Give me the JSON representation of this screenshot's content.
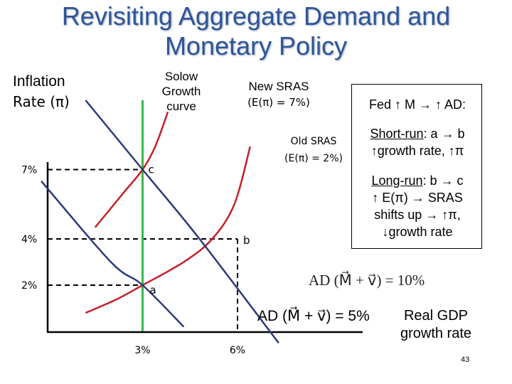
{
  "title": {
    "line1": "Revisiting Aggregate Demand and",
    "line2": "Monetary Policy"
  },
  "axis": {
    "y_label_line1": "Inflation",
    "y_label_line2": "Rate (π)",
    "x_label_line1": "Real GDP",
    "x_label_line2": "growth rate"
  },
  "curves": {
    "solow_line1": "Solow",
    "solow_line2": "Growth",
    "solow_line3": "curve",
    "new_sras_line1": "New SRAS",
    "new_sras_line2": "(E(π) = 7%)",
    "old_sras_line1": "Old SRAS",
    "old_sras_line2": "(E(π) = 2%)",
    "ad_high": "AD (M⃗ + v⃗) = 10%",
    "ad_low": "AD (M⃗ + v⃗) = 5%"
  },
  "box": {
    "heading": "Fed ↑ M → ↑ AD:",
    "short_run_label": "Short-run",
    "short_run_rest": ": a → b",
    "short_run_line2": "↑growth rate, ↑π",
    "long_run_label": "Long-run",
    "long_run_rest": ": b → c",
    "long_run_line2": "↑ E(π) → SRAS",
    "long_run_line3": "shifts up → ↑π,",
    "long_run_line4": "↓growth rate"
  },
  "page_number": "43",
  "colors": {
    "title": "#2e5597",
    "solow": "#3cb54a",
    "ad": "#2b3a78",
    "sras": "#c3202a"
  },
  "chart_data": {
    "type": "line",
    "xlabel": "Real GDP growth rate",
    "ylabel": "Inflation Rate (π)",
    "x_ticks": [
      "3%",
      "6%"
    ],
    "y_ticks": [
      "7%",
      "4%",
      "2%"
    ],
    "series": [
      {
        "name": "Solow Growth curve",
        "points": [
          [
            3,
            0
          ],
          [
            3,
            10
          ]
        ]
      },
      {
        "name": "Old SRAS (E(π) = 2%)",
        "points": [
          [
            1.2,
            0.8
          ],
          [
            2.2,
            1.4
          ],
          [
            3,
            2
          ],
          [
            4.3,
            3
          ],
          [
            5.2,
            4
          ],
          [
            5.9,
            5.5
          ],
          [
            6.4,
            8
          ]
        ]
      },
      {
        "name": "New SRAS (E(π) = 7%)",
        "points": [
          [
            1.5,
            4.5
          ],
          [
            2.4,
            6
          ],
          [
            3,
            7
          ],
          [
            3.4,
            8
          ],
          [
            3.8,
            9.5
          ]
        ]
      },
      {
        "name": "AD (M⃗ + v⃗) = 10%",
        "points": [
          [
            1.2,
            10
          ],
          [
            3,
            7
          ],
          [
            4.8,
            4
          ],
          [
            7.3,
            -0.5
          ]
        ]
      },
      {
        "name": "AD (M⃗ + v⃗) = 5%",
        "points": [
          [
            -0.2,
            6.5
          ],
          [
            2,
            3
          ],
          [
            3,
            2
          ],
          [
            4.3,
            0.2
          ]
        ]
      }
    ],
    "points": [
      {
        "label": "a",
        "x": 3,
        "y": 2
      },
      {
        "label": "b",
        "x": 6,
        "y": 4
      },
      {
        "label": "c",
        "x": 3,
        "y": 7
      }
    ]
  }
}
